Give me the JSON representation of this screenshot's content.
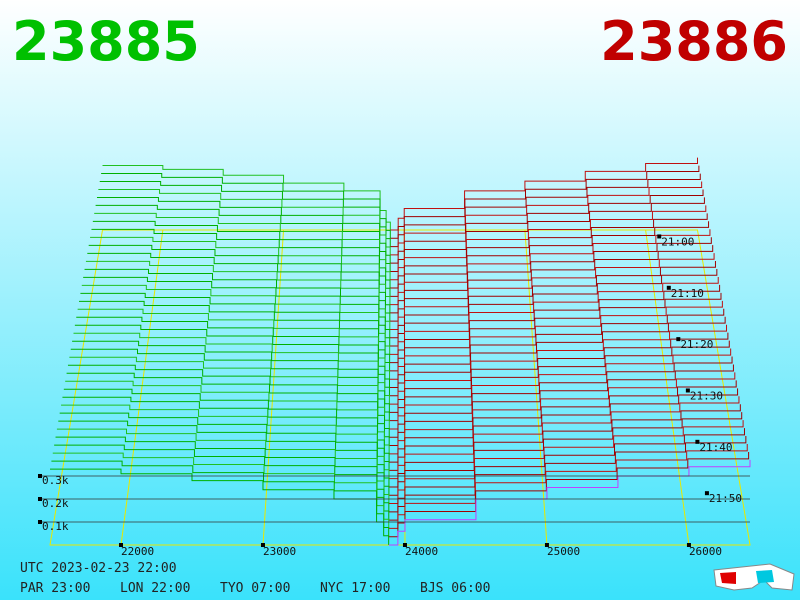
{
  "header": {
    "bid": "23885",
    "ask": "23886"
  },
  "chart_data": {
    "type": "depth3d",
    "bids": {
      "color": "#00b000",
      "prices": [
        21500,
        22000,
        22500,
        23000,
        23500,
        23800,
        23850,
        23885
      ],
      "depth": [
        330,
        310,
        280,
        240,
        200,
        100,
        40,
        0
      ]
    },
    "asks": {
      "color": "#a00000",
      "latest_color": "#c040ff",
      "prices": [
        23886,
        23950,
        24000,
        24500,
        25000,
        25500,
        26000,
        26430
      ],
      "depth": [
        0,
        60,
        110,
        200,
        250,
        300,
        340,
        370
      ]
    },
    "xlim": [
      21500,
      26430
    ],
    "xticks": [
      22000,
      23000,
      24000,
      25000,
      26000
    ],
    "zticks": [
      {
        "value": 100,
        "label": "0.1k"
      },
      {
        "value": 200,
        "label": "0.2k"
      },
      {
        "value": 300,
        "label": "0.3k"
      }
    ],
    "time_ticks": [
      "21:00",
      "21:10",
      "21:20",
      "21:30",
      "21:40",
      "21:50"
    ],
    "grid_color": "#e8e800"
  },
  "footer": {
    "utc": "UTC 2023-02-23 22:00",
    "zones": [
      "PAR 23:00",
      "LON 22:00",
      "TYO 07:00",
      "NYC 17:00",
      "BJS 06:00"
    ]
  }
}
